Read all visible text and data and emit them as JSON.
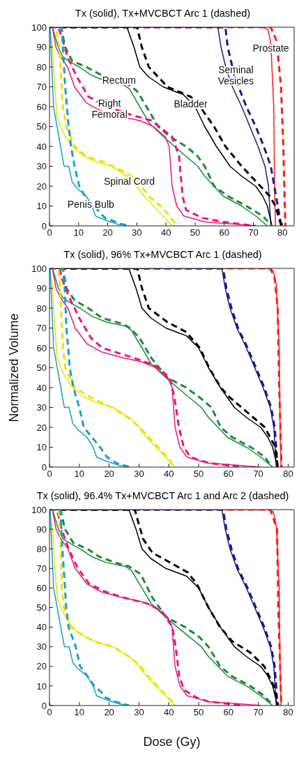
{
  "chart_data": [
    {
      "type": "line",
      "title": "Tx (solid), Tx+MVCBCT Arc 1 (dashed)",
      "xlim": [
        0,
        84
      ],
      "xticks": [
        0,
        10,
        20,
        30,
        40,
        50,
        60,
        70,
        80
      ],
      "ylim": [
        0,
        100
      ],
      "yticks": [
        0,
        10,
        20,
        30,
        40,
        50,
        60,
        70,
        80,
        90,
        100
      ],
      "marker": "none",
      "annotations": [
        {
          "text": "Prostate",
          "x": 76,
          "y": 89.3
        },
        {
          "text": "Seminal\nVesicles",
          "x": 64,
          "y": 75.8
        },
        {
          "text": "Bladder",
          "x": 48.5,
          "y": 61.3
        },
        {
          "text": "Rectum",
          "x": 23.9,
          "y": 73.3
        },
        {
          "text": "Right\nFemoral",
          "x": 20.6,
          "y": 58.9
        },
        {
          "text": "Spinal Cord",
          "x": 27.4,
          "y": 22.4
        },
        {
          "text": "Penis Bulb",
          "x": 14.2,
          "y": 10.9
        }
      ],
      "series": [
        {
          "color": "#ff1a1a",
          "line_style": "solid",
          "x": [
            0,
            73,
            75,
            76,
            77,
            77.3,
            77.6
          ],
          "values": [
            100,
            100,
            99,
            92,
            60,
            20,
            0
          ]
        },
        {
          "color": "#ff1a1a",
          "line_style": "dashed",
          "x": [
            0,
            76,
            78,
            79.5,
            80.3,
            80.8,
            81
          ],
          "values": [
            100,
            100,
            93,
            70,
            40,
            10,
            0
          ]
        },
        {
          "color": "#1c1a8c",
          "line_style": "solid",
          "x": [
            0,
            57.8,
            58.9,
            60.5,
            62.8,
            66,
            68.8,
            71.6,
            74,
            75.2,
            75.6,
            76
          ],
          "values": [
            100,
            100,
            90,
            80,
            70,
            60,
            50,
            40,
            30,
            20,
            10,
            0
          ]
        },
        {
          "color": "#1c1a8c",
          "line_style": "dashed",
          "x": [
            0,
            60.4,
            61.2,
            63.6,
            67.6,
            70.8,
            73.6,
            76,
            77.2,
            78.4,
            79.6
          ],
          "values": [
            100,
            100,
            90,
            75,
            60,
            50,
            40,
            30,
            20,
            10,
            0
          ]
        },
        {
          "color": "#000000",
          "line_style": "solid",
          "x": [
            0,
            26.6,
            29,
            31,
            34,
            39,
            46,
            50,
            53.3,
            57.3,
            62,
            66,
            70.8,
            73.2,
            74.8,
            76.4
          ],
          "values": [
            100,
            100,
            90,
            80,
            75,
            70,
            66,
            60,
            50,
            40,
            30,
            25,
            20,
            15,
            10,
            0
          ]
        },
        {
          "color": "#000000",
          "line_style": "dashed",
          "x": [
            0,
            30.1,
            31.7,
            34.1,
            40.5,
            48.5,
            51.7,
            56.5,
            60.4,
            66,
            72.4,
            75.6,
            77.6,
            79.6
          ],
          "values": [
            100,
            100,
            90,
            80,
            70,
            65,
            60,
            50,
            40,
            30,
            20,
            15,
            10,
            0
          ]
        },
        {
          "color": "#1a8a3a",
          "line_style": "solid",
          "x": [
            0,
            1,
            3,
            4.6,
            7.8,
            10.2,
            14.2,
            19,
            25.4,
            27.4,
            31,
            34.1,
            39,
            42.9,
            46.9,
            50.9,
            53.3,
            56.5,
            59.6,
            66,
            70.8,
            74.8
          ],
          "values": [
            100,
            100,
            90,
            85,
            82,
            80,
            76,
            73,
            71,
            69,
            60,
            52,
            45,
            40,
            35,
            30,
            25,
            20,
            15,
            10,
            5,
            0
          ]
        },
        {
          "color": "#1a8a3a",
          "line_style": "dashed",
          "x": [
            0,
            4,
            5.4,
            7.8,
            12.6,
            19,
            26.2,
            30,
            33.3,
            37.3,
            41.3,
            46.9,
            50.9,
            53.3,
            56.5,
            61.2,
            67.6,
            73.2,
            76.4
          ],
          "values": [
            100,
            100,
            90,
            83,
            80,
            75,
            72,
            68,
            60,
            50,
            45,
            40,
            35,
            30,
            20,
            15,
            10,
            5,
            0
          ]
        },
        {
          "color": "#e8197a",
          "line_style": "solid",
          "x": [
            0,
            1,
            2.2,
            3.8,
            6.2,
            8.6,
            12.6,
            17.4,
            24.6,
            31,
            35.7,
            39.7,
            41.1,
            42.1,
            43.7,
            46.1,
            53.3,
            62.8,
            70.8
          ],
          "values": [
            100,
            100,
            90,
            85,
            80,
            70,
            62,
            58,
            55,
            53,
            50,
            45,
            40,
            20,
            10,
            5,
            2,
            1,
            0
          ]
        },
        {
          "color": "#e8197a",
          "line_style": "dashed",
          "x": [
            0,
            3,
            4.2,
            6.2,
            9.4,
            13.4,
            19.8,
            27.8,
            35,
            42.1,
            44.5,
            45.7,
            46.9,
            52.5,
            59.6,
            70.8
          ],
          "values": [
            100,
            100,
            95,
            85,
            75,
            65,
            60,
            56,
            53,
            45,
            35,
            15,
            8,
            4,
            2,
            0
          ]
        },
        {
          "color": "#f0e000",
          "line_style": "solid",
          "x": [
            0,
            1,
            1.8,
            2.6,
            3.8,
            5.4,
            7.8,
            11.8,
            16.6,
            21.4,
            26.6,
            28.9,
            32.5,
            35.7,
            38.9,
            42.1
          ],
          "values": [
            100,
            90,
            70,
            55,
            50,
            45,
            40,
            35,
            32,
            30,
            25,
            22,
            15,
            10,
            5,
            0
          ]
        },
        {
          "color": "#f0e000",
          "line_style": "dashed",
          "x": [
            0,
            2.2,
            3.4,
            3.8,
            4.6,
            5.8,
            8.6,
            12.6,
            19,
            24.6,
            29.3,
            34.1,
            38.1,
            41.3,
            43.7
          ],
          "values": [
            100,
            100,
            90,
            80,
            60,
            50,
            40,
            35,
            32,
            28,
            24,
            15,
            10,
            5,
            0
          ]
        },
        {
          "color": "#1aa0c8",
          "line_style": "solid",
          "x": [
            0,
            0.2,
            0.8,
            1.4,
            2.6,
            3.8,
            5,
            6.6,
            7.8,
            9.4,
            12.6,
            14.6,
            15.8,
            19,
            23,
            26.6
          ],
          "values": [
            100,
            100,
            80,
            60,
            50,
            40,
            30,
            30,
            22,
            19,
            15,
            10,
            5,
            3,
            1,
            0
          ]
        },
        {
          "color": "#1aa0c8",
          "line_style": "dashed",
          "x": [
            0,
            4.2,
            4.6,
            5.4,
            6.6,
            7.4,
            8.6,
            10.2,
            13.4,
            16.6,
            19,
            24.6,
            27.8
          ],
          "values": [
            100,
            100,
            90,
            70,
            50,
            40,
            30,
            20,
            12,
            8,
            4,
            1,
            0
          ]
        }
      ]
    },
    {
      "type": "line",
      "title": "Tx (solid), 96% Tx+MVCBCT Arc 1 (dashed)",
      "ylabel": "Normalized Volume",
      "xlim": [
        0,
        82
      ],
      "xticks": [
        0,
        10,
        20,
        30,
        40,
        50,
        60,
        70,
        80
      ],
      "ylim": [
        0,
        100
      ],
      "yticks": [
        0,
        10,
        20,
        30,
        40,
        50,
        60,
        70,
        80,
        90,
        100
      ],
      "marker": "none",
      "series": [
        {
          "color": "#ff1a1a",
          "line_style": "solid",
          "x": [
            0,
            73,
            75,
            76,
            77,
            77.3,
            77.6
          ],
          "values": [
            100,
            100,
            99,
            92,
            60,
            20,
            0
          ]
        },
        {
          "color": "#ff1a1a",
          "line_style": "dashed",
          "x": [
            0,
            74,
            75.5,
            76.5,
            77,
            77.8
          ],
          "values": [
            100,
            100,
            95,
            80,
            40,
            0
          ]
        },
        {
          "color": "#1c1a8c",
          "line_style": "solid",
          "x": [
            0,
            57.8,
            58.9,
            60.5,
            62.8,
            66,
            68.8,
            71.6,
            74,
            75.2,
            75.6,
            76
          ],
          "values": [
            100,
            100,
            90,
            80,
            70,
            60,
            50,
            40,
            30,
            20,
            10,
            0
          ]
        },
        {
          "color": "#1c1a8c",
          "line_style": "dashed",
          "x": [
            0,
            58.2,
            59.3,
            61,
            63.2,
            66.4,
            69.2,
            72,
            74.3,
            75.5,
            76,
            76.4
          ],
          "values": [
            100,
            100,
            90,
            80,
            70,
            60,
            50,
            40,
            30,
            20,
            10,
            0
          ]
        },
        {
          "color": "#000000",
          "line_style": "solid",
          "x": [
            0,
            26.6,
            29,
            31,
            34,
            39,
            46,
            50,
            53.3,
            57.3,
            62,
            66,
            70.8,
            73.2,
            74.8,
            76.4
          ],
          "values": [
            100,
            100,
            90,
            80,
            75,
            70,
            66,
            60,
            50,
            40,
            30,
            25,
            20,
            15,
            10,
            0
          ]
        },
        {
          "color": "#000000",
          "line_style": "dashed",
          "x": [
            0,
            29.4,
            31,
            33.3,
            39.5,
            45.8,
            50.4,
            53.5,
            57.4,
            60.5,
            64.4,
            68.3,
            72.2,
            75.7,
            76.5
          ],
          "values": [
            100,
            100,
            90,
            80,
            73,
            68,
            60,
            50,
            40,
            35,
            30,
            25,
            20,
            10,
            0
          ]
        },
        {
          "color": "#1a8a3a",
          "line_style": "solid",
          "x": [
            0,
            1,
            3,
            4.6,
            7.8,
            10.2,
            14.2,
            19,
            25.4,
            27.4,
            31,
            34.1,
            39,
            42.9,
            46.9,
            50.9,
            53.3,
            56.5,
            59.6,
            66,
            70.8,
            74.8
          ],
          "values": [
            100,
            100,
            90,
            85,
            82,
            80,
            76,
            73,
            71,
            69,
            60,
            52,
            45,
            40,
            35,
            30,
            25,
            20,
            15,
            10,
            5,
            0
          ]
        },
        {
          "color": "#1a8a3a",
          "line_style": "dashed",
          "x": [
            0,
            4.5,
            5.7,
            8.4,
            13,
            17.7,
            24.7,
            27,
            30.2,
            34.1,
            39.5,
            45.8,
            50.4,
            54.3,
            57.4,
            61.3,
            67.5,
            72.2,
            74.6
          ],
          "values": [
            100,
            100,
            90,
            84,
            80,
            75,
            72,
            70,
            65,
            55,
            45,
            40,
            35,
            30,
            20,
            15,
            10,
            5,
            0
          ]
        },
        {
          "color": "#e8197a",
          "line_style": "solid",
          "x": [
            0,
            1,
            2.2,
            3.8,
            6.2,
            8.6,
            12.6,
            17.4,
            24.6,
            31,
            35.7,
            39.7,
            41.1,
            42.1,
            43.7,
            46.1,
            53.3,
            62.8,
            70.8
          ],
          "values": [
            100,
            100,
            90,
            85,
            80,
            70,
            62,
            58,
            55,
            53,
            50,
            45,
            40,
            20,
            10,
            5,
            2,
            1,
            0
          ]
        },
        {
          "color": "#e8197a",
          "line_style": "dashed",
          "x": [
            0,
            3.5,
            4.1,
            6.8,
            10,
            13.9,
            17.7,
            24,
            30.2,
            35.6,
            40.3,
            41.9,
            43.4,
            45,
            47.3,
            53.5,
            65.2
          ],
          "values": [
            100,
            100,
            95,
            85,
            75,
            65,
            60,
            57,
            54,
            51,
            45,
            35,
            20,
            10,
            5,
            2,
            0
          ]
        },
        {
          "color": "#f0e000",
          "line_style": "solid",
          "x": [
            0,
            1,
            1.8,
            2.6,
            3.8,
            5.4,
            7.8,
            11.8,
            16.6,
            21.4,
            26.6,
            28.9,
            32.5,
            35.7,
            38.9,
            42.1
          ],
          "values": [
            100,
            90,
            70,
            55,
            50,
            45,
            40,
            35,
            32,
            30,
            25,
            22,
            15,
            10,
            5,
            0
          ]
        },
        {
          "color": "#f0e000",
          "line_style": "dashed",
          "x": [
            0,
            3,
            3.6,
            3.9,
            4.5,
            5.3,
            8.4,
            13.9,
            20.9,
            26.3,
            30.2,
            36.4,
            39.5,
            41.9
          ],
          "values": [
            100,
            100,
            90,
            80,
            60,
            50,
            40,
            35,
            30,
            25,
            20,
            10,
            5,
            0
          ]
        },
        {
          "color": "#1aa0c8",
          "line_style": "solid",
          "x": [
            0,
            0.2,
            0.8,
            1.4,
            2.6,
            3.8,
            5,
            6.6,
            7.8,
            9.4,
            12.6,
            14.6,
            15.8,
            19,
            23,
            26.6
          ],
          "values": [
            100,
            100,
            80,
            60,
            50,
            40,
            30,
            30,
            22,
            19,
            15,
            10,
            5,
            3,
            1,
            0
          ]
        },
        {
          "color": "#1aa0c8",
          "line_style": "dashed",
          "x": [
            0,
            4.5,
            5.1,
            5.7,
            6.8,
            8,
            10,
            11.5,
            17,
            19.3,
            22.4,
            27.1
          ],
          "values": [
            100,
            100,
            90,
            70,
            50,
            40,
            30,
            20,
            10,
            5,
            2,
            0
          ]
        }
      ]
    },
    {
      "type": "line",
      "title": "Tx (solid), 96.4% Tx+MVCBCT Arc 1 and Arc 2 (dashed)",
      "xlabel": "Dose (Gy)",
      "xlim": [
        0,
        82
      ],
      "xticks": [
        0,
        10,
        20,
        30,
        40,
        50,
        60,
        70,
        80
      ],
      "ylim": [
        0,
        100
      ],
      "yticks": [
        0,
        10,
        20,
        30,
        40,
        50,
        60,
        70,
        80,
        90,
        100
      ],
      "marker": "none",
      "series": [
        {
          "color": "#ff1a1a",
          "line_style": "solid",
          "x": [
            0,
            73,
            75,
            76,
            77,
            77.3,
            77.6
          ],
          "values": [
            100,
            100,
            99,
            92,
            60,
            20,
            0
          ]
        },
        {
          "color": "#ff1a1a",
          "line_style": "dashed",
          "x": [
            0,
            74,
            76.3,
            76.7,
            77.7
          ],
          "values": [
            100,
            100,
            90,
            50,
            0
          ]
        },
        {
          "color": "#1c1a8c",
          "line_style": "solid",
          "x": [
            0,
            57.8,
            58.9,
            60.5,
            62.8,
            66,
            68.8,
            71.6,
            74,
            75.2,
            75.6,
            76
          ],
          "values": [
            100,
            100,
            90,
            80,
            70,
            60,
            50,
            40,
            30,
            20,
            10,
            0
          ]
        },
        {
          "color": "#1c1a8c",
          "line_style": "dashed",
          "x": [
            0,
            58.2,
            59.3,
            61,
            63.2,
            66.4,
            69.2,
            72,
            74.3,
            75.5,
            76,
            76.4
          ],
          "values": [
            100,
            100,
            90,
            80,
            70,
            60,
            50,
            40,
            30,
            20,
            10,
            0
          ]
        },
        {
          "color": "#000000",
          "line_style": "solid",
          "x": [
            0,
            26.6,
            29,
            31,
            34,
            39,
            46,
            50,
            53.3,
            57.3,
            62,
            66,
            70.8,
            73.2,
            74.8,
            76.4
          ],
          "values": [
            100,
            100,
            90,
            80,
            75,
            70,
            66,
            60,
            50,
            40,
            30,
            25,
            20,
            15,
            10,
            0
          ]
        },
        {
          "color": "#000000",
          "line_style": "dashed",
          "x": [
            0,
            28.6,
            29.5,
            31.4,
            34.5,
            41.6,
            46.3,
            49.4,
            53.3,
            57.2,
            61.1,
            67.3,
            72,
            75.2,
            76.7
          ],
          "values": [
            100,
            100,
            95,
            85,
            78,
            72,
            68,
            62,
            50,
            40,
            33,
            27,
            20,
            10,
            0
          ]
        },
        {
          "color": "#1a8a3a",
          "line_style": "solid",
          "x": [
            0,
            1,
            3,
            4.6,
            7.8,
            10.2,
            14.2,
            19,
            25.4,
            27.4,
            31,
            34.1,
            39,
            42.9,
            46.9,
            50.9,
            53.3,
            56.5,
            59.6,
            66,
            70.8,
            74.8
          ],
          "values": [
            100,
            100,
            90,
            85,
            82,
            80,
            76,
            73,
            71,
            69,
            60,
            52,
            45,
            40,
            35,
            30,
            25,
            20,
            15,
            10,
            5,
            0
          ]
        },
        {
          "color": "#1a8a3a",
          "line_style": "dashed",
          "x": [
            0,
            3.7,
            5.2,
            8,
            12.7,
            16.6,
            22,
            26.7,
            30.6,
            34.5,
            39.2,
            45.5,
            50.2,
            53.3,
            57.2,
            61.1,
            67.3,
            72,
            74.8
          ],
          "values": [
            100,
            100,
            90,
            83,
            80,
            76,
            73,
            71,
            67,
            55,
            45,
            40,
            35,
            30,
            20,
            15,
            10,
            5,
            0
          ]
        },
        {
          "color": "#e8197a",
          "line_style": "solid",
          "x": [
            0,
            1,
            2.2,
            3.8,
            6.2,
            8.6,
            12.6,
            17.4,
            24.6,
            31,
            35.7,
            39.7,
            41.1,
            42.1,
            43.7,
            46.1,
            53.3,
            62.8,
            70.8
          ],
          "values": [
            100,
            100,
            90,
            85,
            80,
            70,
            62,
            58,
            55,
            53,
            50,
            45,
            40,
            20,
            10,
            5,
            2,
            1,
            0
          ]
        },
        {
          "color": "#e8197a",
          "line_style": "dashed",
          "x": [
            0,
            2.5,
            4.1,
            6.4,
            9.5,
            13.4,
            18.9,
            25.2,
            33,
            37.7,
            41.2,
            42.3,
            43.5,
            45.1,
            49.4,
            53.3,
            65
          ],
          "values": [
            100,
            100,
            90,
            80,
            70,
            62,
            58,
            55,
            52,
            48,
            40,
            30,
            15,
            8,
            4,
            2,
            0
          ]
        },
        {
          "color": "#f0e000",
          "line_style": "solid",
          "x": [
            0,
            1,
            1.8,
            2.6,
            3.8,
            5.4,
            7.8,
            11.8,
            16.6,
            21.4,
            26.6,
            28.9,
            32.5,
            35.7,
            38.9,
            42.1
          ],
          "values": [
            100,
            90,
            70,
            55,
            50,
            45,
            40,
            35,
            32,
            30,
            25,
            22,
            15,
            10,
            5,
            0
          ]
        },
        {
          "color": "#f0e000",
          "line_style": "dashed",
          "x": [
            0,
            3.1,
            3.7,
            4.1,
            4.8,
            7.2,
            11.9,
            16.6,
            21.3,
            26.7,
            30.6,
            33,
            36.1,
            39.2,
            42.3
          ],
          "values": [
            100,
            100,
            85,
            60,
            50,
            40,
            35,
            32,
            30,
            25,
            20,
            15,
            10,
            5,
            0
          ]
        },
        {
          "color": "#1aa0c8",
          "line_style": "solid",
          "x": [
            0,
            0.2,
            0.8,
            1.4,
            2.6,
            3.8,
            5,
            6.6,
            7.8,
            9.4,
            12.6,
            14.6,
            15.8,
            19,
            23,
            26.6
          ],
          "values": [
            100,
            100,
            80,
            60,
            50,
            40,
            30,
            30,
            22,
            19,
            15,
            10,
            5,
            3,
            1,
            0
          ]
        },
        {
          "color": "#1aa0c8",
          "line_style": "dashed",
          "x": [
            0,
            3.7,
            4.1,
            5.2,
            5.6,
            6.4,
            8.8,
            10.3,
            12.7,
            15,
            17.3,
            18.9,
            22,
            26.7
          ],
          "values": [
            100,
            100,
            85,
            60,
            50,
            40,
            30,
            20,
            15,
            10,
            7,
            4,
            2,
            0
          ]
        }
      ]
    }
  ]
}
